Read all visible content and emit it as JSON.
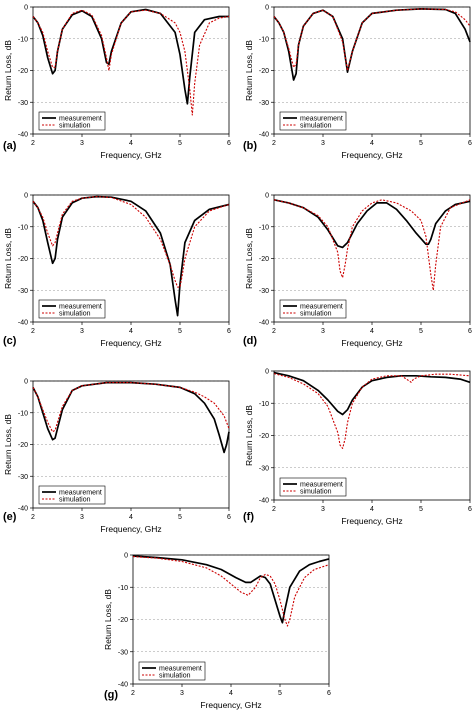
{
  "figure": {
    "charts": [
      "a",
      "b",
      "c",
      "d",
      "e",
      "f",
      "g"
    ]
  },
  "chart_data": [
    {
      "panel": "(a)",
      "type": "line",
      "xlabel": "Frequency, GHz",
      "ylabel": "Return Loss, dB",
      "xlim": [
        2,
        6
      ],
      "ylim": [
        -40,
        0
      ],
      "xticks": [
        2,
        3,
        4,
        5,
        6
      ],
      "yticks": [
        0,
        -10,
        -20,
        -30,
        -40
      ],
      "grid": "horizontal dashed",
      "legend": "bottom-left",
      "series": [
        {
          "name": "measurement",
          "style": "solid",
          "color": "#000000",
          "x": [
            2,
            2.1,
            2.2,
            2.3,
            2.4,
            2.45,
            2.5,
            2.6,
            2.8,
            3.0,
            3.2,
            3.4,
            3.5,
            3.55,
            3.6,
            3.8,
            4.0,
            4.3,
            4.6,
            4.9,
            5.0,
            5.1,
            5.15,
            5.2,
            5.3,
            5.5,
            5.8,
            6.0
          ],
          "y": [
            -3,
            -5,
            -9,
            -16,
            -21,
            -20,
            -14,
            -7,
            -2.5,
            -1.2,
            -3,
            -10,
            -17.5,
            -18,
            -14,
            -5,
            -1.5,
            -0.8,
            -2,
            -8,
            -15,
            -26,
            -30.5,
            -22,
            -8,
            -4,
            -3,
            -3
          ]
        },
        {
          "name": "simulation",
          "style": "dotted",
          "color": "#cc0000",
          "x": [
            2,
            2.1,
            2.2,
            2.3,
            2.4,
            2.45,
            2.5,
            2.6,
            2.8,
            3.0,
            3.2,
            3.4,
            3.5,
            3.55,
            3.6,
            3.8,
            4.0,
            4.3,
            4.6,
            4.9,
            5.0,
            5.1,
            5.2,
            5.25,
            5.3,
            5.4,
            5.6,
            5.8,
            6.0
          ],
          "y": [
            -3,
            -5,
            -8,
            -14,
            -19,
            -19,
            -14,
            -7,
            -2,
            -1,
            -2.5,
            -9,
            -16,
            -20,
            -15,
            -5,
            -1.5,
            -1,
            -2,
            -5,
            -8,
            -14,
            -26,
            -34,
            -24,
            -12,
            -5,
            -3.5,
            -3
          ]
        }
      ]
    },
    {
      "panel": "(b)",
      "type": "line",
      "xlabel": "Frequency, GHz",
      "ylabel": "Return Loss, dB",
      "xlim": [
        2,
        6
      ],
      "ylim": [
        -40,
        0
      ],
      "xticks": [
        2,
        3,
        4,
        5,
        6
      ],
      "yticks": [
        0,
        -10,
        -20,
        -30,
        -40
      ],
      "grid": "horizontal dashed",
      "legend": "bottom-left",
      "series": [
        {
          "name": "measurement",
          "style": "solid",
          "color": "#000000",
          "x": [
            2,
            2.1,
            2.2,
            2.3,
            2.4,
            2.45,
            2.5,
            2.6,
            2.8,
            3.0,
            3.2,
            3.4,
            3.5,
            3.6,
            3.8,
            4.0,
            4.5,
            5.0,
            5.5,
            5.7,
            5.9,
            6.0
          ],
          "y": [
            -3,
            -5,
            -8,
            -14,
            -23,
            -21,
            -12,
            -6,
            -2,
            -1,
            -3,
            -10,
            -20.5,
            -14,
            -5,
            -2,
            -1,
            -0.6,
            -0.8,
            -2,
            -7,
            -11
          ]
        },
        {
          "name": "simulation",
          "style": "dotted",
          "color": "#cc0000",
          "x": [
            2,
            2.1,
            2.2,
            2.3,
            2.4,
            2.45,
            2.5,
            2.6,
            2.8,
            3.0,
            3.2,
            3.4,
            3.5,
            3.6,
            3.8,
            4.0,
            4.5,
            5.0,
            5.5,
            5.7,
            5.9,
            6.0
          ],
          "y": [
            -3,
            -5,
            -8,
            -13,
            -19,
            -18,
            -12,
            -6,
            -2,
            -1,
            -3,
            -11,
            -20,
            -14,
            -5,
            -2,
            -1,
            -0.6,
            -0.8,
            -1.5,
            -4,
            -6
          ]
        }
      ]
    },
    {
      "panel": "(c)",
      "type": "line",
      "xlabel": "Frequency, GHz",
      "ylabel": "Return Loss, dB",
      "xlim": [
        2,
        6
      ],
      "ylim": [
        -40,
        0
      ],
      "xticks": [
        2,
        3,
        4,
        5,
        6
      ],
      "yticks": [
        0,
        -10,
        -20,
        -30,
        -40
      ],
      "grid": "horizontal dashed",
      "legend": "bottom-left",
      "series": [
        {
          "name": "measurement",
          "style": "solid",
          "color": "#000000",
          "x": [
            2,
            2.1,
            2.2,
            2.3,
            2.4,
            2.45,
            2.5,
            2.6,
            2.8,
            3.0,
            3.3,
            3.6,
            4.0,
            4.3,
            4.6,
            4.8,
            4.9,
            4.95,
            5.0,
            5.1,
            5.3,
            5.6,
            6.0
          ],
          "y": [
            -2,
            -4,
            -8,
            -15,
            -21.5,
            -20,
            -14,
            -7,
            -2.5,
            -1,
            -0.5,
            -0.7,
            -2,
            -5,
            -12,
            -22,
            -33,
            -38,
            -28,
            -15,
            -8,
            -4.5,
            -3
          ]
        },
        {
          "name": "simulation",
          "style": "dotted",
          "color": "#cc0000",
          "x": [
            2,
            2.1,
            2.2,
            2.3,
            2.4,
            2.45,
            2.5,
            2.6,
            2.8,
            3.0,
            3.3,
            3.6,
            4.0,
            4.3,
            4.6,
            4.8,
            4.9,
            4.95,
            5.0,
            5.05,
            5.1,
            5.3,
            5.6,
            6.0
          ],
          "y": [
            -2,
            -4,
            -7,
            -12,
            -16,
            -15,
            -12,
            -6,
            -2,
            -1,
            -0.5,
            -0.8,
            -3,
            -7,
            -14,
            -22,
            -27,
            -29,
            -29,
            -25,
            -20,
            -10,
            -5,
            -3
          ]
        }
      ]
    },
    {
      "panel": "(d)",
      "type": "line",
      "xlabel": "Frequency, GHz",
      "ylabel": "Return Loss, dB",
      "xlim": [
        2,
        6
      ],
      "ylim": [
        -40,
        0
      ],
      "xticks": [
        2,
        3,
        4,
        5,
        6
      ],
      "yticks": [
        0,
        -10,
        -20,
        -30,
        -40
      ],
      "grid": "horizontal dashed",
      "legend": "bottom-left",
      "series": [
        {
          "name": "measurement",
          "style": "solid",
          "color": "#000000",
          "x": [
            2,
            2.3,
            2.6,
            2.9,
            3.1,
            3.3,
            3.4,
            3.5,
            3.7,
            3.9,
            4.1,
            4.3,
            4.5,
            4.7,
            4.9,
            5.1,
            5.15,
            5.2,
            5.3,
            5.5,
            5.7,
            6.0
          ],
          "y": [
            -1.5,
            -2.5,
            -4,
            -7,
            -11,
            -16,
            -16.5,
            -15,
            -9,
            -5,
            -2.5,
            -2.5,
            -4.5,
            -8,
            -12,
            -15.5,
            -15.5,
            -14,
            -9,
            -5,
            -3,
            -2
          ]
        },
        {
          "name": "simulation",
          "style": "dotted",
          "color": "#cc0000",
          "x": [
            2,
            2.3,
            2.6,
            2.9,
            3.1,
            3.3,
            3.35,
            3.4,
            3.45,
            3.5,
            3.6,
            3.8,
            4.0,
            4.2,
            4.5,
            4.8,
            5.0,
            5.1,
            5.2,
            5.25,
            5.3,
            5.4,
            5.6,
            6.0
          ],
          "y": [
            -1.5,
            -2.5,
            -4,
            -6.5,
            -10,
            -18,
            -24,
            -26,
            -22,
            -17,
            -10,
            -5,
            -2.5,
            -1.5,
            -2.5,
            -5,
            -8,
            -13,
            -25,
            -30,
            -22,
            -10,
            -4,
            -1.5
          ]
        }
      ]
    },
    {
      "panel": "(e)",
      "type": "line",
      "xlabel": "Frequency, GHz",
      "ylabel": "Return Loss, dB",
      "xlim": [
        2,
        6
      ],
      "ylim": [
        -40,
        0
      ],
      "xticks": [
        2,
        3,
        4,
        5,
        6
      ],
      "yticks": [
        0,
        -10,
        -20,
        -30,
        -40
      ],
      "grid": "horizontal dashed",
      "legend": "bottom-left",
      "series": [
        {
          "name": "measurement",
          "style": "solid",
          "color": "#000000",
          "x": [
            2,
            2.1,
            2.2,
            2.3,
            2.4,
            2.45,
            2.5,
            2.6,
            2.8,
            3.0,
            3.5,
            4.0,
            4.5,
            5.0,
            5.3,
            5.5,
            5.7,
            5.8,
            5.9,
            5.95,
            6.0
          ],
          "y": [
            -2,
            -5,
            -10,
            -15,
            -18.5,
            -18,
            -15,
            -9,
            -3,
            -1.5,
            -0.5,
            -0.5,
            -1,
            -2,
            -4,
            -7,
            -12,
            -17,
            -22.5,
            -20,
            -16
          ]
        },
        {
          "name": "simulation",
          "style": "dotted",
          "color": "#cc0000",
          "x": [
            2,
            2.1,
            2.2,
            2.3,
            2.4,
            2.45,
            2.5,
            2.6,
            2.8,
            3.0,
            3.5,
            4.0,
            4.5,
            5.0,
            5.3,
            5.5,
            5.7,
            5.9,
            6.0
          ],
          "y": [
            -2,
            -5,
            -9,
            -13,
            -16,
            -15.5,
            -13,
            -8,
            -3,
            -1.5,
            -0.5,
            -0.5,
            -1,
            -2,
            -3.5,
            -5,
            -7,
            -11,
            -15
          ]
        }
      ]
    },
    {
      "panel": "(f)",
      "type": "line",
      "xlabel": "Frequency, GHz",
      "ylabel": "Return Loss, dB",
      "xlim": [
        2,
        6
      ],
      "ylim": [
        -40,
        0
      ],
      "xticks": [
        2,
        3,
        4,
        5,
        6
      ],
      "yticks": [
        0,
        -10,
        -20,
        -30,
        -40
      ],
      "grid": "horizontal dashed",
      "legend": "bottom-left",
      "series": [
        {
          "name": "measurement",
          "style": "solid",
          "color": "#000000",
          "x": [
            2,
            2.3,
            2.6,
            2.9,
            3.1,
            3.3,
            3.4,
            3.5,
            3.6,
            3.8,
            4.0,
            4.3,
            4.6,
            4.9,
            5.2,
            5.5,
            5.8,
            6.0
          ],
          "y": [
            -0.5,
            -1.5,
            -3,
            -6,
            -9,
            -12.5,
            -13.5,
            -12,
            -9,
            -5,
            -3,
            -2,
            -1.5,
            -1.5,
            -1.8,
            -2,
            -2.5,
            -3.5
          ]
        },
        {
          "name": "simulation",
          "style": "dotted",
          "color": "#cc0000",
          "x": [
            2,
            2.3,
            2.6,
            2.9,
            3.1,
            3.3,
            3.35,
            3.4,
            3.45,
            3.5,
            3.6,
            3.8,
            4.0,
            4.3,
            4.6,
            4.75,
            4.8,
            4.85,
            5.0,
            5.3,
            5.6,
            6.0
          ],
          "y": [
            -0.8,
            -2,
            -4,
            -7,
            -11,
            -19,
            -23,
            -24,
            -21,
            -16,
            -10,
            -5,
            -2.5,
            -1.5,
            -1.5,
            -3,
            -3.5,
            -2.5,
            -1.5,
            -1,
            -1,
            -1.5
          ]
        }
      ]
    },
    {
      "panel": "(g)",
      "type": "line",
      "xlabel": "Frequency, GHz",
      "ylabel": "Return Loss, dB",
      "xlim": [
        2,
        6
      ],
      "ylim": [
        -40,
        0
      ],
      "xticks": [
        2,
        3,
        4,
        5,
        6
      ],
      "yticks": [
        0,
        -10,
        -20,
        -30,
        -40
      ],
      "grid": "horizontal dashed",
      "legend": "bottom-left",
      "series": [
        {
          "name": "measurement",
          "style": "solid",
          "color": "#000000",
          "x": [
            2,
            2.5,
            3.0,
            3.5,
            3.8,
            4.1,
            4.3,
            4.4,
            4.5,
            4.6,
            4.7,
            4.8,
            4.9,
            5.0,
            5.05,
            5.1,
            5.2,
            5.4,
            5.6,
            5.8,
            6.0
          ],
          "y": [
            -0.3,
            -0.8,
            -1.5,
            -3,
            -4.5,
            -7,
            -8.5,
            -8.5,
            -7.5,
            -6.5,
            -7,
            -9,
            -14,
            -19,
            -21,
            -17,
            -10,
            -5,
            -3,
            -2,
            -1.2
          ]
        },
        {
          "name": "simulation",
          "style": "dotted",
          "color": "#cc0000",
          "x": [
            2,
            2.5,
            3.0,
            3.5,
            3.8,
            4.0,
            4.2,
            4.35,
            4.5,
            4.6,
            4.7,
            4.8,
            4.9,
            5.0,
            5.1,
            5.15,
            5.2,
            5.3,
            5.5,
            5.7,
            5.9,
            6.0
          ],
          "y": [
            -0.5,
            -1,
            -2,
            -4,
            -6.5,
            -9,
            -11.5,
            -12.5,
            -10,
            -7,
            -6,
            -6.5,
            -9,
            -14,
            -20,
            -22,
            -20,
            -13,
            -7,
            -4.5,
            -3.5,
            -3
          ]
        }
      ]
    }
  ]
}
